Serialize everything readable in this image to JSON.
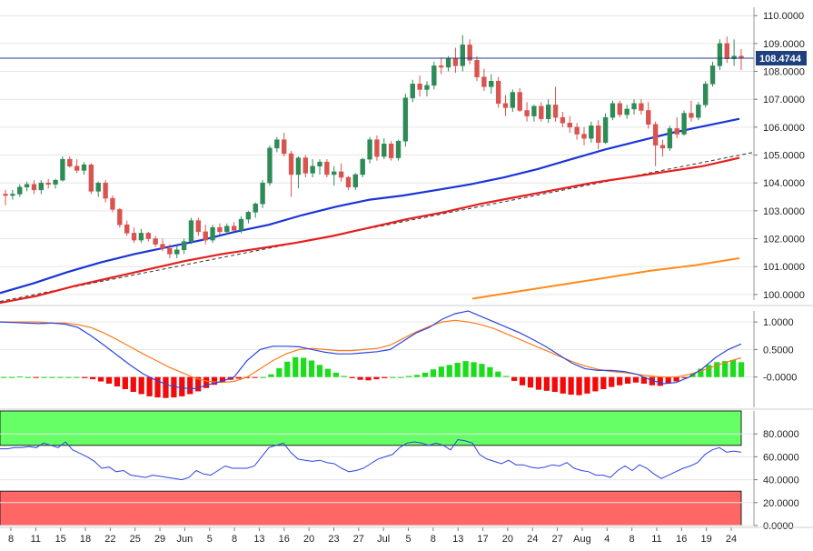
{
  "chart_data": [
    {
      "panel": "price",
      "type": "candlestick",
      "y_axis_ticks": [
        "110.0000",
        "109.0000",
        "108.0000",
        "107.0000",
        "106.0000",
        "105.0000",
        "104.0000",
        "103.0000",
        "102.0000",
        "101.0000",
        "100.0000"
      ],
      "ylim": [
        99.8,
        110.3
      ],
      "last_price_label": "108.4744",
      "last_price": 108.4744,
      "grid": true,
      "colors": {
        "up": "#2e8b57",
        "down": "#d9534f",
        "sma_blue": "#1a35d6",
        "sma_red": "#e61e1e",
        "sma_orange": "#ff8c1a",
        "trendline": "#333333"
      },
      "candles": [
        [
          103.6,
          103.75,
          103.2,
          103.55
        ],
        [
          103.55,
          103.75,
          103.4,
          103.6
        ],
        [
          103.6,
          103.95,
          103.5,
          103.85
        ],
        [
          103.85,
          104.05,
          103.7,
          103.95
        ],
        [
          103.95,
          104.1,
          103.6,
          103.75
        ],
        [
          103.75,
          104.1,
          103.6,
          104.0
        ],
        [
          104.0,
          104.15,
          103.8,
          103.95
        ],
        [
          103.95,
          104.15,
          103.8,
          104.1
        ],
        [
          104.1,
          104.95,
          104.05,
          104.85
        ],
        [
          104.85,
          104.95,
          104.55,
          104.6
        ],
        [
          104.6,
          104.85,
          104.35,
          104.45
        ],
        [
          104.45,
          104.75,
          104.3,
          104.65
        ],
        [
          104.65,
          104.7,
          103.6,
          103.7
        ],
        [
          103.7,
          104.05,
          103.5,
          104.0
        ],
        [
          104.0,
          104.1,
          103.3,
          103.45
        ],
        [
          103.45,
          103.55,
          102.95,
          103.05
        ],
        [
          103.05,
          103.1,
          102.4,
          102.5
        ],
        [
          102.5,
          102.65,
          102.1,
          102.2
        ],
        [
          102.2,
          102.4,
          101.85,
          101.95
        ],
        [
          101.95,
          102.35,
          101.85,
          102.2
        ],
        [
          102.2,
          102.25,
          101.9,
          102.0
        ],
        [
          102.0,
          102.1,
          101.7,
          101.8
        ],
        [
          101.8,
          102.0,
          101.55,
          101.65
        ],
        [
          101.65,
          101.8,
          101.3,
          101.45
        ],
        [
          101.45,
          101.75,
          101.3,
          101.6
        ],
        [
          101.6,
          102.0,
          101.45,
          101.9
        ],
        [
          101.9,
          102.75,
          101.8,
          102.65
        ],
        [
          102.65,
          102.75,
          102.1,
          102.25
        ],
        [
          102.25,
          102.5,
          101.8,
          101.95
        ],
        [
          101.95,
          102.5,
          101.85,
          102.4
        ],
        [
          102.4,
          102.55,
          102.15,
          102.25
        ],
        [
          102.25,
          102.55,
          102.15,
          102.45
        ],
        [
          102.45,
          102.6,
          102.25,
          102.3
        ],
        [
          102.3,
          102.8,
          102.2,
          102.7
        ],
        [
          102.7,
          103.0,
          102.55,
          102.95
        ],
        [
          102.95,
          103.3,
          102.75,
          103.25
        ],
        [
          103.25,
          104.1,
          103.1,
          104.0
        ],
        [
          104.0,
          105.35,
          103.9,
          105.25
        ],
        [
          105.25,
          105.65,
          105.1,
          105.55
        ],
        [
          105.55,
          105.8,
          104.95,
          105.05
        ],
        [
          105.05,
          105.15,
          103.5,
          104.3
        ],
        [
          104.3,
          104.95,
          103.8,
          104.9
        ],
        [
          104.9,
          105.0,
          104.2,
          104.35
        ],
        [
          104.35,
          104.85,
          104.2,
          104.6
        ],
        [
          104.6,
          104.85,
          104.3,
          104.75
        ],
        [
          104.75,
          104.85,
          104.2,
          104.3
        ],
        [
          104.3,
          104.6,
          103.9,
          104.4
        ],
        [
          104.4,
          104.7,
          104.05,
          104.2
        ],
        [
          104.2,
          104.25,
          103.75,
          103.85
        ],
        [
          103.85,
          104.35,
          103.75,
          104.3
        ],
        [
          104.3,
          104.9,
          104.2,
          104.85
        ],
        [
          104.85,
          105.65,
          104.7,
          105.55
        ],
        [
          105.55,
          105.7,
          104.8,
          104.95
        ],
        [
          104.95,
          105.6,
          104.85,
          105.4
        ],
        [
          105.4,
          105.5,
          104.8,
          104.9
        ],
        [
          104.9,
          105.55,
          104.8,
          105.5
        ],
        [
          105.5,
          107.2,
          105.3,
          107.05
        ],
        [
          107.05,
          107.7,
          106.9,
          107.55
        ],
        [
          107.55,
          107.85,
          107.1,
          107.35
        ],
        [
          107.35,
          107.65,
          107.1,
          107.5
        ],
        [
          107.5,
          108.35,
          107.35,
          108.2
        ],
        [
          108.2,
          108.5,
          107.9,
          108.15
        ],
        [
          108.15,
          108.55,
          108.0,
          108.45
        ],
        [
          108.45,
          108.85,
          107.95,
          108.2
        ],
        [
          108.2,
          109.3,
          108.0,
          108.95
        ],
        [
          108.95,
          109.15,
          108.25,
          108.4
        ],
        [
          108.4,
          108.55,
          107.65,
          107.8
        ],
        [
          107.8,
          108.1,
          107.3,
          107.45
        ],
        [
          107.45,
          107.9,
          107.2,
          107.65
        ],
        [
          107.65,
          107.8,
          106.7,
          106.85
        ],
        [
          106.85,
          107.15,
          106.4,
          106.7
        ],
        [
          106.7,
          107.35,
          106.55,
          107.25
        ],
        [
          107.25,
          107.4,
          106.55,
          106.6
        ],
        [
          106.6,
          106.9,
          106.2,
          106.4
        ],
        [
          106.4,
          106.8,
          106.2,
          106.75
        ],
        [
          106.75,
          106.9,
          106.2,
          106.3
        ],
        [
          106.3,
          107.0,
          106.15,
          106.8
        ],
        [
          106.8,
          107.45,
          106.2,
          106.35
        ],
        [
          106.35,
          106.55,
          106.0,
          106.15
        ],
        [
          106.15,
          106.4,
          105.8,
          106.0
        ],
        [
          106.0,
          106.15,
          105.55,
          105.75
        ],
        [
          105.75,
          106.0,
          105.35,
          105.6
        ],
        [
          105.6,
          106.2,
          105.45,
          106.05
        ],
        [
          106.05,
          106.25,
          105.2,
          105.45
        ],
        [
          105.45,
          106.5,
          105.4,
          106.35
        ],
        [
          106.35,
          106.95,
          106.25,
          106.85
        ],
        [
          106.85,
          106.95,
          106.35,
          106.45
        ],
        [
          106.45,
          106.8,
          106.3,
          106.65
        ],
        [
          106.65,
          107.0,
          106.45,
          106.85
        ],
        [
          106.85,
          107.0,
          106.45,
          106.6
        ],
        [
          106.6,
          106.9,
          105.95,
          106.1
        ],
        [
          106.1,
          106.2,
          104.6,
          105.35
        ],
        [
          105.35,
          105.55,
          104.95,
          105.25
        ],
        [
          105.25,
          106.05,
          105.15,
          105.95
        ],
        [
          105.95,
          106.35,
          105.6,
          105.75
        ],
        [
          105.75,
          106.6,
          105.7,
          106.5
        ],
        [
          106.5,
          106.95,
          106.2,
          106.35
        ],
        [
          106.35,
          106.9,
          106.25,
          106.8
        ],
        [
          106.8,
          107.65,
          106.7,
          107.55
        ],
        [
          107.55,
          108.35,
          107.45,
          108.2
        ],
        [
          108.2,
          109.15,
          108.05,
          109.0
        ],
        [
          109.0,
          109.25,
          108.3,
          108.45
        ],
        [
          108.45,
          109.15,
          108.2,
          108.55
        ],
        [
          108.55,
          108.8,
          108.05,
          108.47
        ]
      ],
      "sma_blue": [
        100.05,
        100.4,
        100.8,
        101.15,
        101.45,
        101.7,
        101.95,
        102.25,
        102.5,
        102.85,
        103.15,
        103.4,
        103.55,
        103.75,
        103.95,
        104.2,
        104.5,
        104.85,
        105.2,
        105.5,
        105.8,
        106.05,
        106.3
      ],
      "sma_red": [
        99.7,
        99.95,
        100.3,
        100.6,
        100.9,
        101.2,
        101.45,
        101.65,
        101.85,
        102.1,
        102.4,
        102.7,
        102.95,
        103.25,
        103.5,
        103.75,
        104.0,
        104.2,
        104.4,
        104.6,
        104.9
      ],
      "sma_orange": [
        99.85,
        100.1,
        100.35,
        100.6,
        100.85,
        101.05,
        101.3
      ],
      "trendline": [
        99.75,
        105.1
      ]
    },
    {
      "panel": "macd",
      "type": "histogram+line",
      "y_axis_ticks": [
        "1.0000",
        "0.5000",
        "-0.0000"
      ],
      "ylim": [
        -0.55,
        1.2
      ],
      "colors": {
        "positive": "#1ddc1d",
        "negative": "#f20a0a",
        "signal_line": "#ff7a1a",
        "macd_line": "#2a45e0"
      },
      "histogram": [
        0.0,
        0.0,
        0.01,
        0.0,
        -0.01,
        0.0,
        0.0,
        0.0,
        0.0,
        0.0,
        -0.02,
        -0.04,
        -0.08,
        -0.12,
        -0.17,
        -0.22,
        -0.27,
        -0.31,
        -0.35,
        -0.37,
        -0.38,
        -0.37,
        -0.35,
        -0.31,
        -0.26,
        -0.2,
        -0.14,
        -0.09,
        -0.05,
        -0.03,
        -0.02,
        -0.01,
        0.0,
        0.05,
        0.16,
        0.28,
        0.36,
        0.35,
        0.3,
        0.22,
        0.15,
        0.08,
        0.02,
        -0.02,
        -0.05,
        -0.06,
        -0.04,
        -0.02,
        0.0,
        0.0,
        0.02,
        0.04,
        0.08,
        0.14,
        0.19,
        0.22,
        0.26,
        0.29,
        0.27,
        0.24,
        0.18,
        0.1,
        0.02,
        -0.07,
        -0.15,
        -0.19,
        -0.23,
        -0.25,
        -0.27,
        -0.3,
        -0.32,
        -0.33,
        -0.3,
        -0.26,
        -0.22,
        -0.18,
        -0.15,
        -0.12,
        -0.1,
        -0.12,
        -0.15,
        -0.16,
        -0.12,
        -0.08,
        -0.02,
        0.06,
        0.15,
        0.22,
        0.27,
        0.29,
        0.31,
        0.27
      ],
      "macd_line": [
        1.0,
        0.99,
        0.98,
        0.97,
        0.98,
        0.96,
        0.9,
        0.75,
        0.58,
        0.4,
        0.22,
        0.06,
        -0.06,
        -0.15,
        -0.2,
        -0.21,
        -0.14,
        -0.08,
        0.0,
        0.3,
        0.5,
        0.56,
        0.56,
        0.55,
        0.5,
        0.45,
        0.42,
        0.42,
        0.44,
        0.46,
        0.5,
        0.65,
        0.8,
        0.9,
        1.05,
        1.15,
        1.2,
        1.1,
        1.0,
        0.9,
        0.8,
        0.68,
        0.55,
        0.4,
        0.25,
        0.15,
        0.12,
        0.12,
        0.1,
        0.05,
        -0.05,
        -0.12,
        -0.1,
        0.0,
        0.15,
        0.35,
        0.5,
        0.6
      ],
      "signal_line": [
        1.0,
        1.0,
        1.0,
        1.0,
        0.98,
        0.98,
        0.95,
        0.9,
        0.8,
        0.68,
        0.55,
        0.42,
        0.3,
        0.18,
        0.08,
        -0.02,
        -0.08,
        -0.1,
        -0.08,
        0.0,
        0.15,
        0.3,
        0.42,
        0.5,
        0.52,
        0.5,
        0.48,
        0.48,
        0.5,
        0.52,
        0.58,
        0.7,
        0.82,
        0.92,
        1.0,
        1.03,
        1.0,
        0.95,
        0.88,
        0.78,
        0.68,
        0.58,
        0.48,
        0.38,
        0.28,
        0.2,
        0.14,
        0.1,
        0.08,
        0.05,
        0.02,
        0.0,
        0.0,
        0.05,
        0.12,
        0.2,
        0.28,
        0.35
      ]
    },
    {
      "panel": "rsi",
      "type": "line",
      "y_axis_ticks": [
        "80.0000",
        "60.0000",
        "40.0000",
        "20.0000",
        "0.0000"
      ],
      "ylim": [
        0,
        100
      ],
      "overbought_color": "#66ff66",
      "oversold_color": "#ff6666",
      "line_color": "#2a45e0",
      "overbought_range": [
        70,
        100
      ],
      "oversold_range": [
        0,
        30
      ],
      "values": [
        67,
        67,
        68,
        68,
        69,
        68,
        72,
        70,
        68,
        73,
        66,
        63,
        60,
        56,
        50,
        51,
        47,
        48,
        44,
        43,
        42,
        44,
        43,
        42,
        41,
        40,
        42,
        48,
        45,
        44,
        48,
        52,
        50,
        50,
        50,
        52,
        60,
        68,
        70,
        72,
        64,
        58,
        57,
        56,
        57,
        55,
        54,
        50,
        47,
        48,
        50,
        54,
        58,
        60,
        62,
        68,
        72,
        73,
        72,
        70,
        72,
        70,
        66,
        75,
        74,
        72,
        62,
        58,
        56,
        54,
        57,
        53,
        53,
        51,
        50,
        51,
        53,
        52,
        55,
        50,
        48,
        47,
        44,
        44,
        42,
        48,
        52,
        48,
        53,
        50,
        45,
        41,
        44,
        47,
        50,
        52,
        55,
        62,
        66,
        68,
        64,
        65,
        64
      ]
    },
    {
      "panel": "x-axis",
      "x_tick_labels": [
        "8",
        "11",
        "15",
        "18",
        "22",
        "25",
        "29",
        "Jun",
        "5",
        "8",
        "13",
        "16",
        "20",
        "23",
        "27",
        "Jul",
        "5",
        "8",
        "13",
        "17",
        "20",
        "24",
        "27",
        "Aug",
        "4",
        "8",
        "11",
        "16",
        "19",
        "24"
      ]
    }
  ]
}
